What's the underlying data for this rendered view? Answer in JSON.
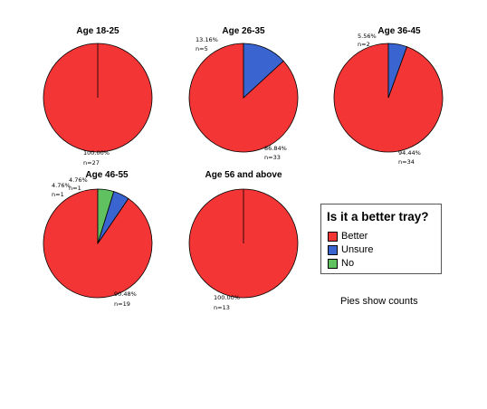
{
  "colors": {
    "Better": "#f43535",
    "Unsure": "#3a64cf",
    "No": "#5fc160"
  },
  "legend": {
    "title": "Is it a better tray?",
    "items": [
      {
        "label": "Better",
        "color": "#f43535"
      },
      {
        "label": "Unsure",
        "color": "#3a64cf"
      },
      {
        "label": "No",
        "color": "#5fc160"
      }
    ]
  },
  "footnote": "Pies show counts",
  "chart_data": [
    {
      "type": "pie",
      "title": "Age 18-25",
      "slices": [
        {
          "category": "Better",
          "value": 27,
          "label_pct": "100.00%",
          "label_n": "n=27"
        }
      ]
    },
    {
      "type": "pie",
      "title": "Age 26-35",
      "slices": [
        {
          "category": "Better",
          "value": 33,
          "label_pct": "86.84%",
          "label_n": "n=33"
        },
        {
          "category": "Unsure",
          "value": 5,
          "label_pct": "13.16%",
          "label_n": "n=5"
        }
      ]
    },
    {
      "type": "pie",
      "title": "Age 36-45",
      "slices": [
        {
          "category": "Better",
          "value": 34,
          "label_pct": "94.44%",
          "label_n": "n=34"
        },
        {
          "category": "Unsure",
          "value": 2,
          "label_pct": "5.56%",
          "label_n": "n=2"
        }
      ]
    },
    {
      "type": "pie",
      "title": "Age 46-55",
      "slices": [
        {
          "category": "Better",
          "value": 19,
          "label_pct": "90.48%",
          "label_n": "n=19"
        },
        {
          "category": "Unsure",
          "value": 1,
          "label_pct": "4.76%",
          "label_n": "n=1"
        },
        {
          "category": "No",
          "value": 1,
          "label_pct": "4.76%",
          "label_n": "n=1"
        }
      ]
    },
    {
      "type": "pie",
      "title": "Age 56 and above",
      "slices": [
        {
          "category": "Better",
          "value": 13,
          "label_pct": "100.00%",
          "label_n": "n=13"
        }
      ]
    }
  ]
}
